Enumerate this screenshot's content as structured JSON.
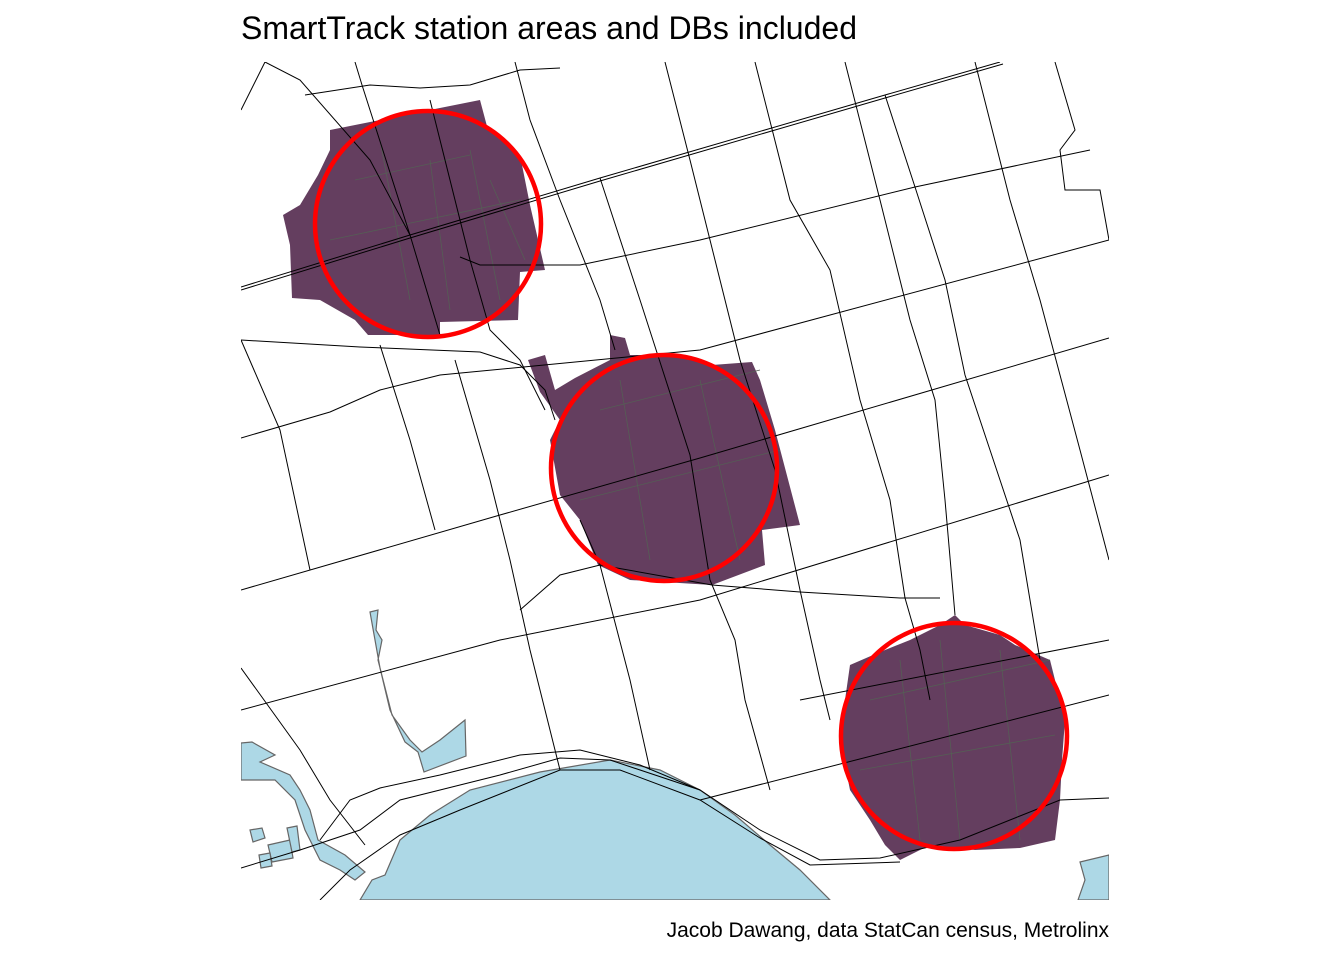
{
  "title": "SmartTrack station areas and DBs included",
  "caption": "Jacob Dawang, data StatCan census, Metrolinx",
  "colors": {
    "db_fill": "#643E5F",
    "water": "#ADD8E6",
    "station_ring": "#FF0000",
    "roads": "#000000"
  },
  "layers": [
    "roads",
    "water",
    "dissemination-blocks",
    "station-area-circles"
  ]
}
